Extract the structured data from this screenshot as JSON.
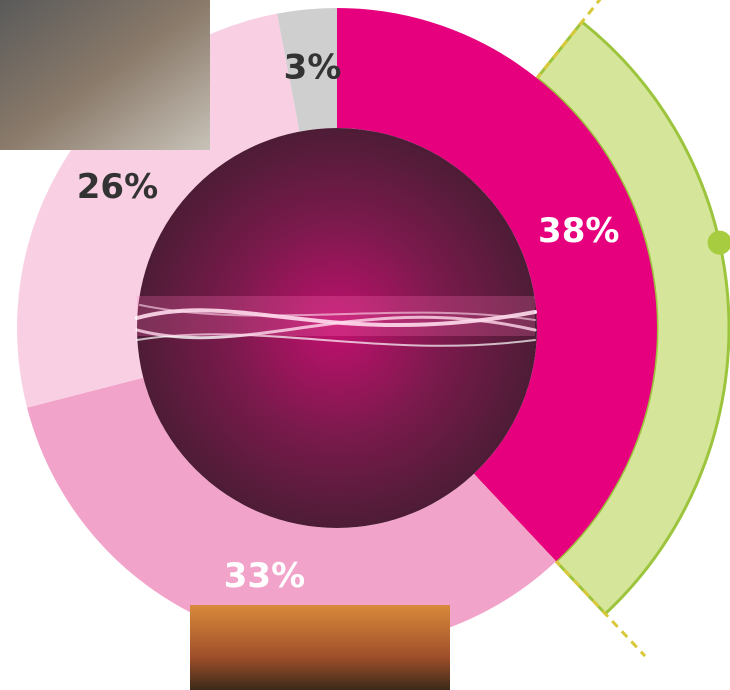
{
  "chart_data": {
    "type": "donut",
    "values": [
      38,
      33,
      26,
      3
    ],
    "value_labels": [
      "38%",
      "33%",
      "26%",
      "3%"
    ],
    "colors": [
      "#e6007e",
      "#f2a3ca",
      "#f9d0e3",
      "#cfcfcf"
    ],
    "label_colors": [
      "#ffffff",
      "#ffffff",
      "#333333",
      "#333333"
    ],
    "highlight_color": "#d5e69b"
  }
}
